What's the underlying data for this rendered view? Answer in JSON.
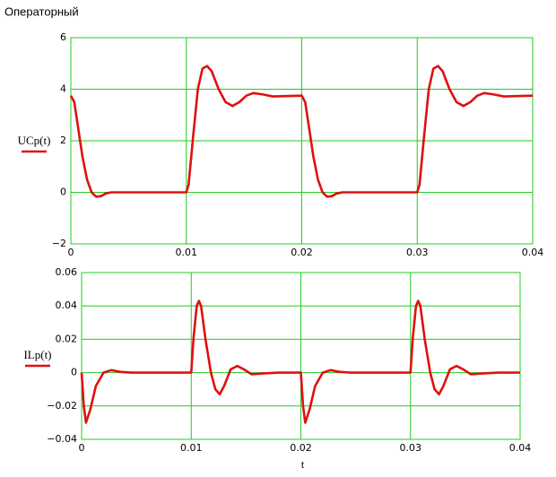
{
  "title": "Операторный",
  "chart_data": [
    {
      "type": "line",
      "x": [
        0,
        0.0003,
        0.0006,
        0.001,
        0.0014,
        0.0018,
        0.0022,
        0.0026,
        0.003,
        0.0035,
        0.01,
        0.0102,
        0.0106,
        0.011,
        0.0114,
        0.0118,
        0.0122,
        0.0128,
        0.0134,
        0.014,
        0.0146,
        0.0152,
        0.0158,
        0.0166,
        0.0175,
        0.02,
        0.0203,
        0.0206,
        0.021,
        0.0214,
        0.0218,
        0.0222,
        0.0226,
        0.023,
        0.0235,
        0.03,
        0.0302,
        0.0306,
        0.031,
        0.0314,
        0.0318,
        0.0322,
        0.0328,
        0.0334,
        0.034,
        0.0346,
        0.0352,
        0.0358,
        0.0366,
        0.0375,
        0.04
      ],
      "series": [
        {
          "name": "UCp(t)",
          "color": "#e01010",
          "values": [
            3.75,
            3.5,
            2.6,
            1.4,
            0.5,
            0.0,
            -0.17,
            -0.15,
            -0.05,
            0,
            0,
            0.3,
            2.2,
            4.0,
            4.8,
            4.9,
            4.7,
            4.0,
            3.5,
            3.35,
            3.5,
            3.75,
            3.85,
            3.8,
            3.72,
            3.75,
            3.5,
            2.6,
            1.4,
            0.5,
            0.0,
            -0.17,
            -0.15,
            -0.05,
            0,
            0,
            0.3,
            2.2,
            4.0,
            4.8,
            4.9,
            4.7,
            4.0,
            3.5,
            3.35,
            3.5,
            3.75,
            3.85,
            3.8,
            3.72,
            3.75
          ]
        }
      ],
      "xlim": [
        0,
        0.04
      ],
      "xticks": [
        0,
        0.01,
        0.02,
        0.03,
        0.04
      ],
      "ylim": [
        -2,
        6
      ],
      "yticks": [
        {
          "value": -2,
          "label": "−2"
        },
        0,
        2,
        4,
        6
      ],
      "grid": true
    },
    {
      "type": "line",
      "xlabel": "t",
      "x": [
        0,
        0.0002,
        0.0004,
        0.0008,
        0.0013,
        0.002,
        0.0027,
        0.0035,
        0.0045,
        0.01,
        0.0102,
        0.0105,
        0.0107,
        0.0109,
        0.0113,
        0.0118,
        0.0122,
        0.0126,
        0.013,
        0.0136,
        0.0142,
        0.0148,
        0.0155,
        0.0165,
        0.018,
        0.02,
        0.0202,
        0.0204,
        0.0208,
        0.0213,
        0.022,
        0.0227,
        0.0235,
        0.0245,
        0.03,
        0.0302,
        0.0305,
        0.0307,
        0.0309,
        0.0313,
        0.0318,
        0.0322,
        0.0326,
        0.033,
        0.0336,
        0.0342,
        0.0348,
        0.0355,
        0.0365,
        0.038,
        0.04
      ],
      "series": [
        {
          "name": "ILp(t)",
          "color": "#e01010",
          "values": [
            0,
            -0.02,
            -0.03,
            -0.022,
            -0.008,
            0,
            0.0015,
            0.0005,
            0,
            0,
            0.02,
            0.04,
            0.043,
            0.04,
            0.02,
            0,
            -0.01,
            -0.013,
            -0.008,
            0.002,
            0.004,
            0.002,
            -0.001,
            -0.0005,
            0,
            0,
            -0.02,
            -0.03,
            -0.022,
            -0.008,
            0,
            0.0015,
            0.0005,
            0,
            0,
            0.02,
            0.04,
            0.043,
            0.04,
            0.02,
            0,
            -0.01,
            -0.013,
            -0.008,
            0.002,
            0.004,
            0.002,
            -0.001,
            -0.0005,
            0,
            0
          ]
        }
      ],
      "xlim": [
        0,
        0.04
      ],
      "xticks": [
        0,
        0.01,
        0.02,
        0.03,
        0.04
      ],
      "ylim": [
        -0.04,
        0.06
      ],
      "yticks": [
        {
          "value": -0.04,
          "label": "−0.04"
        },
        {
          "value": -0.02,
          "label": "−0.02"
        },
        0,
        0.02,
        0.04,
        0.06
      ],
      "grid": true
    }
  ]
}
